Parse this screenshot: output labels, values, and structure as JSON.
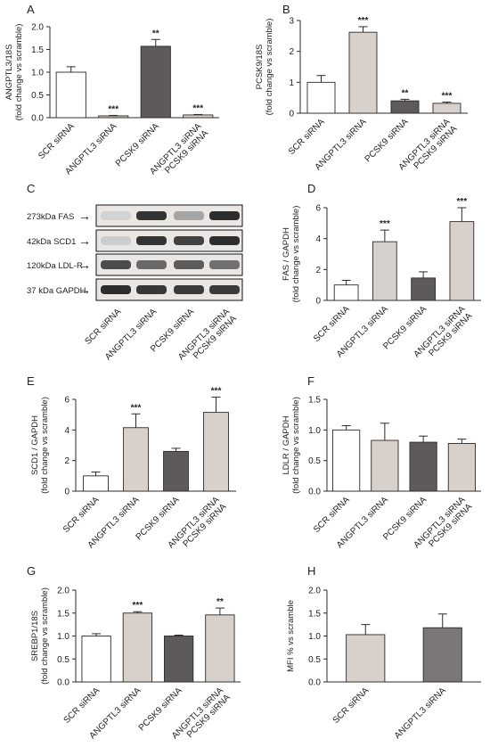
{
  "figure": {
    "blot": {
      "letter": "C",
      "bands": [
        {
          "label": "273kDa FAS",
          "intensity": [
            0.12,
            0.92,
            0.35,
            0.95
          ]
        },
        {
          "label": "42kDa SCD1",
          "intensity": [
            0.15,
            0.92,
            0.85,
            0.95
          ]
        },
        {
          "label": "120kDa LDL-R",
          "intensity": [
            0.8,
            0.65,
            0.72,
            0.62
          ]
        },
        {
          "label": "37 kDa GAPDH",
          "intensity": [
            0.95,
            0.9,
            0.88,
            0.88
          ]
        }
      ],
      "lanes": [
        "SCR siRNA",
        "ANGPTL3 siRNA",
        "PCSK9 siRNA",
        "ANGPTL3 siRNA\nPCSK9 siRNA"
      ],
      "arrow": "→"
    }
  },
  "chart_data": [
    {
      "panel": "A",
      "type": "bar",
      "ylabel": [
        "ANGPTL3/18S",
        "(fold change vs scramble)"
      ],
      "ylim": [
        0,
        2.0
      ],
      "yticks": [
        "0.0",
        "0.5",
        "1.0",
        "1.5",
        "2.0"
      ],
      "categories": [
        "SCR siRNA",
        "ANGPTL3 siRNA",
        "PCSK9 siRNA",
        "ANGPTL3 siRNA\nPCSK9 siRNA"
      ],
      "values": [
        1.0,
        0.04,
        1.57,
        0.06
      ],
      "errors": [
        0.12,
        0.01,
        0.15,
        0.01
      ],
      "significance": [
        "",
        "***",
        "**",
        "***"
      ],
      "colors": [
        "#ffffff",
        "#d8d0ca",
        "#5e5a5b",
        "#d8d0ca"
      ]
    },
    {
      "panel": "B",
      "type": "bar",
      "ylabel": [
        "PCSK9/18S",
        "(fold change vs scramble)"
      ],
      "ylim": [
        0,
        3
      ],
      "yticks": [
        "0",
        "1",
        "2",
        "3"
      ],
      "categories": [
        "SCR siRNA",
        "ANGPTL3 siRNA",
        "PCSK9 siRNA",
        "ANGPTL3 siRNA\nPCSK9 siRNA"
      ],
      "values": [
        1.0,
        2.62,
        0.4,
        0.32
      ],
      "errors": [
        0.22,
        0.18,
        0.05,
        0.04
      ],
      "significance": [
        "",
        "***",
        "**",
        "***"
      ],
      "colors": [
        "#ffffff",
        "#d8d0ca",
        "#5e5a5b",
        "#d8d0ca"
      ]
    },
    {
      "panel": "D",
      "type": "bar",
      "ylabel": [
        "FAS / GAPDH",
        "(fold change vs scramble)"
      ],
      "ylim": [
        0,
        6
      ],
      "yticks": [
        "0",
        "2",
        "4",
        "6"
      ],
      "categories": [
        "SCR siRNA",
        "ANGPTL3 siRNA",
        "PCSK9 siRNA",
        "ANGPTL3 siRNA\nPCSK9 siRNA"
      ],
      "values": [
        1.0,
        3.8,
        1.45,
        5.1
      ],
      "errors": [
        0.3,
        0.75,
        0.4,
        0.9
      ],
      "significance": [
        "",
        "***",
        "",
        "***"
      ],
      "colors": [
        "#ffffff",
        "#d8d0ca",
        "#5e5a5b",
        "#d8d0ca"
      ]
    },
    {
      "panel": "E",
      "type": "bar",
      "ylabel": [
        "SCD1 / GAPDH",
        "(fold change vs scramble)"
      ],
      "ylim": [
        0,
        6
      ],
      "yticks": [
        "0",
        "2",
        "4",
        "6"
      ],
      "categories": [
        "SCR siRNA",
        "ANGPTL3 siRNA",
        "PCSK9 siRNA",
        "ANGPTL3 siRNA\nPCSK9 siRNA"
      ],
      "values": [
        1.0,
        4.15,
        2.6,
        5.15
      ],
      "errors": [
        0.25,
        0.9,
        0.2,
        1.0
      ],
      "significance": [
        "",
        "***",
        "",
        "***"
      ],
      "colors": [
        "#ffffff",
        "#d8d0ca",
        "#5e5a5b",
        "#d8d0ca"
      ]
    },
    {
      "panel": "F",
      "type": "bar",
      "ylabel": [
        "LDLR / GAPDH",
        "(fold change vs scramble)"
      ],
      "ylim": [
        0,
        1.5
      ],
      "yticks": [
        "0.0",
        "0.5",
        "1.0",
        "1.5"
      ],
      "categories": [
        "SCR siRNA",
        "ANGPTL3 siRNA",
        "PCSK9 siRNA",
        "ANGPTL3 siRNA\nPCSK9 siRNA"
      ],
      "values": [
        1.0,
        0.83,
        0.8,
        0.78
      ],
      "errors": [
        0.07,
        0.28,
        0.1,
        0.07
      ],
      "significance": [
        "",
        "",
        "",
        ""
      ],
      "colors": [
        "#ffffff",
        "#d8d0ca",
        "#5e5a5b",
        "#d8d0ca"
      ]
    },
    {
      "panel": "G",
      "type": "bar",
      "ylabel": [
        "SREBP1/18S",
        "(fold change vs scramble)"
      ],
      "ylim": [
        0,
        2.0
      ],
      "yticks": [
        "0.0",
        "0.5",
        "1.0",
        "1.5",
        "2.0"
      ],
      "categories": [
        "SCR siRNA",
        "ANGPTL3 siRNA",
        "PCSK9 siRNA",
        "ANGPTL3 siRNA\nPCSK9 siRNA"
      ],
      "values": [
        1.0,
        1.5,
        1.0,
        1.46
      ],
      "errors": [
        0.05,
        0.03,
        0.02,
        0.15
      ],
      "significance": [
        "",
        "***",
        "",
        "**"
      ],
      "colors": [
        "#ffffff",
        "#d8d0ca",
        "#5e5a5b",
        "#d8d0ca"
      ]
    },
    {
      "panel": "H",
      "type": "bar",
      "ylabel": [
        "MFI % vs scramble"
      ],
      "ylim": [
        0,
        2.0
      ],
      "yticks": [
        "0.0",
        "0.5",
        "1.0",
        "1.5",
        "2.0"
      ],
      "categories": [
        "SCR siRNA",
        "ANGPTL3 siRNA"
      ],
      "values": [
        1.03,
        1.18
      ],
      "errors": [
        0.22,
        0.3
      ],
      "significance": [
        "",
        ""
      ],
      "colors": [
        "#d8d0ca",
        "#7c7777"
      ]
    }
  ]
}
